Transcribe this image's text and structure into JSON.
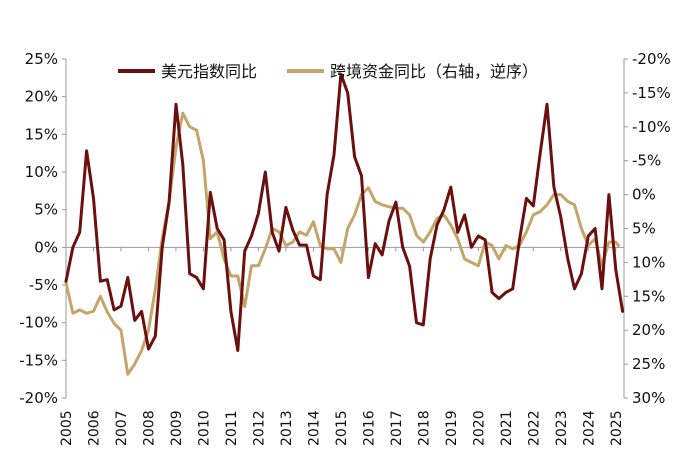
{
  "chart_data": {
    "type": "line",
    "title": "",
    "colors": {
      "usd": "#6B0F0F",
      "flows": "#C4A56A",
      "axis": "#999999"
    },
    "left_axis": {
      "ylim": [
        -20,
        25
      ],
      "ticks": [
        25,
        20,
        15,
        10,
        5,
        0,
        -5,
        -10,
        -15,
        -20
      ],
      "tick_labels": [
        "25%",
        "20%",
        "15%",
        "10%",
        "5%",
        "0%",
        "-5%",
        "-10%",
        "-15%",
        "-20%"
      ]
    },
    "right_axis": {
      "ylim": [
        30,
        -20
      ],
      "inverted": true,
      "ticks": [
        -20,
        -15,
        -10,
        -5,
        0,
        5,
        10,
        15,
        20,
        25,
        30
      ],
      "tick_labels": [
        "-20%",
        "-15%",
        "-10%",
        "-5%",
        "0%",
        "5%",
        "10%",
        "15%",
        "20%",
        "25%",
        "30%"
      ]
    },
    "xlim": [
      2005,
      2025.3
    ],
    "x_tick_labels": [
      "2005",
      "2006",
      "2007",
      "2008",
      "2009",
      "2010",
      "2011",
      "2012",
      "2013",
      "2014",
      "2015",
      "2016",
      "2017",
      "2018",
      "2019",
      "2020",
      "2021",
      "2022",
      "2023",
      "2024",
      "2025"
    ],
    "series": [
      {
        "name": "美元指数同比",
        "axis": "left",
        "points": [
          [
            2005.0,
            -4.5
          ],
          [
            2005.25,
            0
          ],
          [
            2005.5,
            2
          ],
          [
            2005.75,
            12.8
          ],
          [
            2006.0,
            6.5
          ],
          [
            2006.25,
            -4.5
          ],
          [
            2006.5,
            -4.3
          ],
          [
            2006.75,
            -8.3
          ],
          [
            2007.0,
            -7.8
          ],
          [
            2007.25,
            -4
          ],
          [
            2007.5,
            -9.7
          ],
          [
            2007.75,
            -8.5
          ],
          [
            2008.0,
            -13.5
          ],
          [
            2008.25,
            -11.8
          ],
          [
            2008.5,
            0
          ],
          [
            2008.75,
            6
          ],
          [
            2009.0,
            19
          ],
          [
            2009.25,
            11
          ],
          [
            2009.5,
            -3.5
          ],
          [
            2009.75,
            -4
          ],
          [
            2010.0,
            -5.5
          ],
          [
            2010.25,
            7.3
          ],
          [
            2010.5,
            2.5
          ],
          [
            2010.75,
            1
          ],
          [
            2011.0,
            -8.5
          ],
          [
            2011.25,
            -13.7
          ],
          [
            2011.5,
            -0.5
          ],
          [
            2011.75,
            1.5
          ],
          [
            2012.0,
            4.5
          ],
          [
            2012.25,
            10
          ],
          [
            2012.5,
            2
          ],
          [
            2012.75,
            -0.5
          ],
          [
            2013.0,
            5.3
          ],
          [
            2013.25,
            2.3
          ],
          [
            2013.5,
            0.3
          ],
          [
            2013.75,
            0.3
          ],
          [
            2014.0,
            -3.8
          ],
          [
            2014.25,
            -4.3
          ],
          [
            2014.5,
            7
          ],
          [
            2014.75,
            12.3
          ],
          [
            2015.0,
            23
          ],
          [
            2015.25,
            20.5
          ],
          [
            2015.5,
            12
          ],
          [
            2015.75,
            9.5
          ],
          [
            2016.0,
            -4
          ],
          [
            2016.25,
            0.5
          ],
          [
            2016.5,
            -1
          ],
          [
            2016.75,
            3.5
          ],
          [
            2017.0,
            6
          ],
          [
            2017.25,
            0
          ],
          [
            2017.5,
            -2.5
          ],
          [
            2017.75,
            -10
          ],
          [
            2018.0,
            -10.3
          ],
          [
            2018.25,
            -1.5
          ],
          [
            2018.5,
            3
          ],
          [
            2018.75,
            5
          ],
          [
            2019.0,
            8
          ],
          [
            2019.25,
            2
          ],
          [
            2019.5,
            4.3
          ],
          [
            2019.75,
            0
          ],
          [
            2020.0,
            1.5
          ],
          [
            2020.25,
            1
          ],
          [
            2020.5,
            -6
          ],
          [
            2020.75,
            -6.8
          ],
          [
            2021.0,
            -6
          ],
          [
            2021.25,
            -5.5
          ],
          [
            2021.5,
            1
          ],
          [
            2021.75,
            6.5
          ],
          [
            2022.0,
            5.5
          ],
          [
            2022.25,
            12.5
          ],
          [
            2022.5,
            19
          ],
          [
            2022.75,
            8
          ],
          [
            2023.0,
            4
          ],
          [
            2023.25,
            -1.5
          ],
          [
            2023.5,
            -5.5
          ],
          [
            2023.75,
            -3.5
          ],
          [
            2024.0,
            1.5
          ],
          [
            2024.25,
            2.5
          ],
          [
            2024.5,
            -5.5
          ],
          [
            2024.75,
            7
          ],
          [
            2025.0,
            -3
          ],
          [
            2025.25,
            -8.5
          ]
        ]
      },
      {
        "name": "跨境资金同比（右轴，逆序）",
        "axis": "right",
        "points": [
          [
            2005.0,
            13
          ],
          [
            2005.25,
            17.5
          ],
          [
            2005.5,
            17
          ],
          [
            2005.75,
            17.5
          ],
          [
            2006.0,
            17.2
          ],
          [
            2006.25,
            15
          ],
          [
            2006.5,
            17.3
          ],
          [
            2006.75,
            19
          ],
          [
            2007.0,
            20
          ],
          [
            2007.25,
            26.5
          ],
          [
            2007.5,
            25
          ],
          [
            2007.75,
            23
          ],
          [
            2008.0,
            20
          ],
          [
            2008.25,
            14
          ],
          [
            2008.5,
            6.5
          ],
          [
            2008.75,
            1
          ],
          [
            2009.0,
            -7
          ],
          [
            2009.25,
            -12
          ],
          [
            2009.5,
            -10
          ],
          [
            2009.75,
            -9.5
          ],
          [
            2010.0,
            -5
          ],
          [
            2010.25,
            6.5
          ],
          [
            2010.5,
            5.5
          ],
          [
            2010.75,
            9.5
          ],
          [
            2011.0,
            12
          ],
          [
            2011.25,
            12
          ],
          [
            2011.5,
            16.5
          ],
          [
            2011.75,
            10.5
          ],
          [
            2012.0,
            10.5
          ],
          [
            2012.25,
            8
          ],
          [
            2012.5,
            5
          ],
          [
            2012.75,
            5.5
          ],
          [
            2013.0,
            7.5
          ],
          [
            2013.25,
            7
          ],
          [
            2013.5,
            5.5
          ],
          [
            2013.75,
            6
          ],
          [
            2014.0,
            4
          ],
          [
            2014.25,
            7.5
          ],
          [
            2014.5,
            8
          ],
          [
            2014.75,
            8
          ],
          [
            2015.0,
            10
          ],
          [
            2015.25,
            5
          ],
          [
            2015.5,
            3
          ],
          [
            2015.75,
            0
          ],
          [
            2016.0,
            -1
          ],
          [
            2016.25,
            1
          ],
          [
            2016.5,
            1.5
          ],
          [
            2016.75,
            1.8
          ],
          [
            2017.0,
            2
          ],
          [
            2017.25,
            2
          ],
          [
            2017.5,
            3
          ],
          [
            2017.75,
            6
          ],
          [
            2018.0,
            7
          ],
          [
            2018.25,
            5.5
          ],
          [
            2018.5,
            3.5
          ],
          [
            2018.75,
            3
          ],
          [
            2019.0,
            4.5
          ],
          [
            2019.25,
            6.5
          ],
          [
            2019.5,
            9.5
          ],
          [
            2019.75,
            10
          ],
          [
            2020.0,
            10.5
          ],
          [
            2020.25,
            7
          ],
          [
            2020.5,
            7.5
          ],
          [
            2020.75,
            9.5
          ],
          [
            2021.0,
            7.5
          ],
          [
            2021.25,
            8
          ],
          [
            2021.5,
            7.5
          ],
          [
            2021.75,
            5.5
          ],
          [
            2022.0,
            3
          ],
          [
            2022.25,
            2.5
          ],
          [
            2022.5,
            1.5
          ],
          [
            2022.75,
            0
          ],
          [
            2023.0,
            0
          ],
          [
            2023.25,
            1
          ],
          [
            2023.5,
            1.5
          ],
          [
            2023.75,
            5
          ],
          [
            2024.0,
            7.5
          ],
          [
            2024.25,
            6.5
          ],
          [
            2024.5,
            10.5
          ],
          [
            2024.75,
            7
          ],
          [
            2025.0,
            7
          ],
          [
            2025.1,
            7.5
          ]
        ]
      }
    ]
  }
}
